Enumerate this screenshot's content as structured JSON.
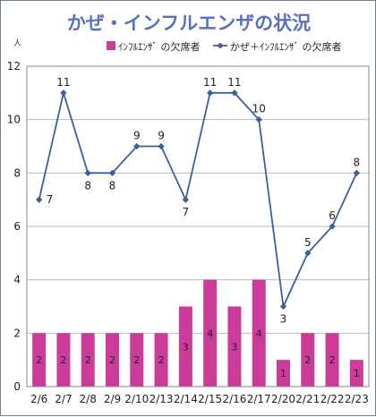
{
  "chart_data": {
    "type": "bar+line",
    "title": "かぜ・インフルエンザの状況",
    "y_unit": "人",
    "categories": [
      "2/6",
      "2/7",
      "2/8",
      "2/9",
      "2/10",
      "2/13",
      "2/14",
      "2/15",
      "2/16",
      "2/17",
      "2/20",
      "2/21",
      "2/22",
      "2/23"
    ],
    "ylim": [
      0,
      12
    ],
    "yticks": [
      0,
      2,
      4,
      6,
      8,
      10,
      12
    ],
    "grid": true,
    "legend_position": "top",
    "series": [
      {
        "name": "ｲﾝﾌﾙｴﾝｻﾞ の欠席者",
        "kind": "bar",
        "color": "#cc3b9a",
        "values": [
          2,
          2,
          2,
          2,
          2,
          2,
          3,
          4,
          3,
          4,
          1,
          2,
          2,
          1
        ]
      },
      {
        "name": "かぜ＋ｲﾝﾌﾙｴﾝｻﾞ の欠席者",
        "kind": "line",
        "color": "#3d5f9a",
        "values": [
          7,
          11,
          8,
          8,
          9,
          9,
          7,
          11,
          11,
          10,
          3,
          5,
          6,
          8
        ]
      }
    ]
  }
}
